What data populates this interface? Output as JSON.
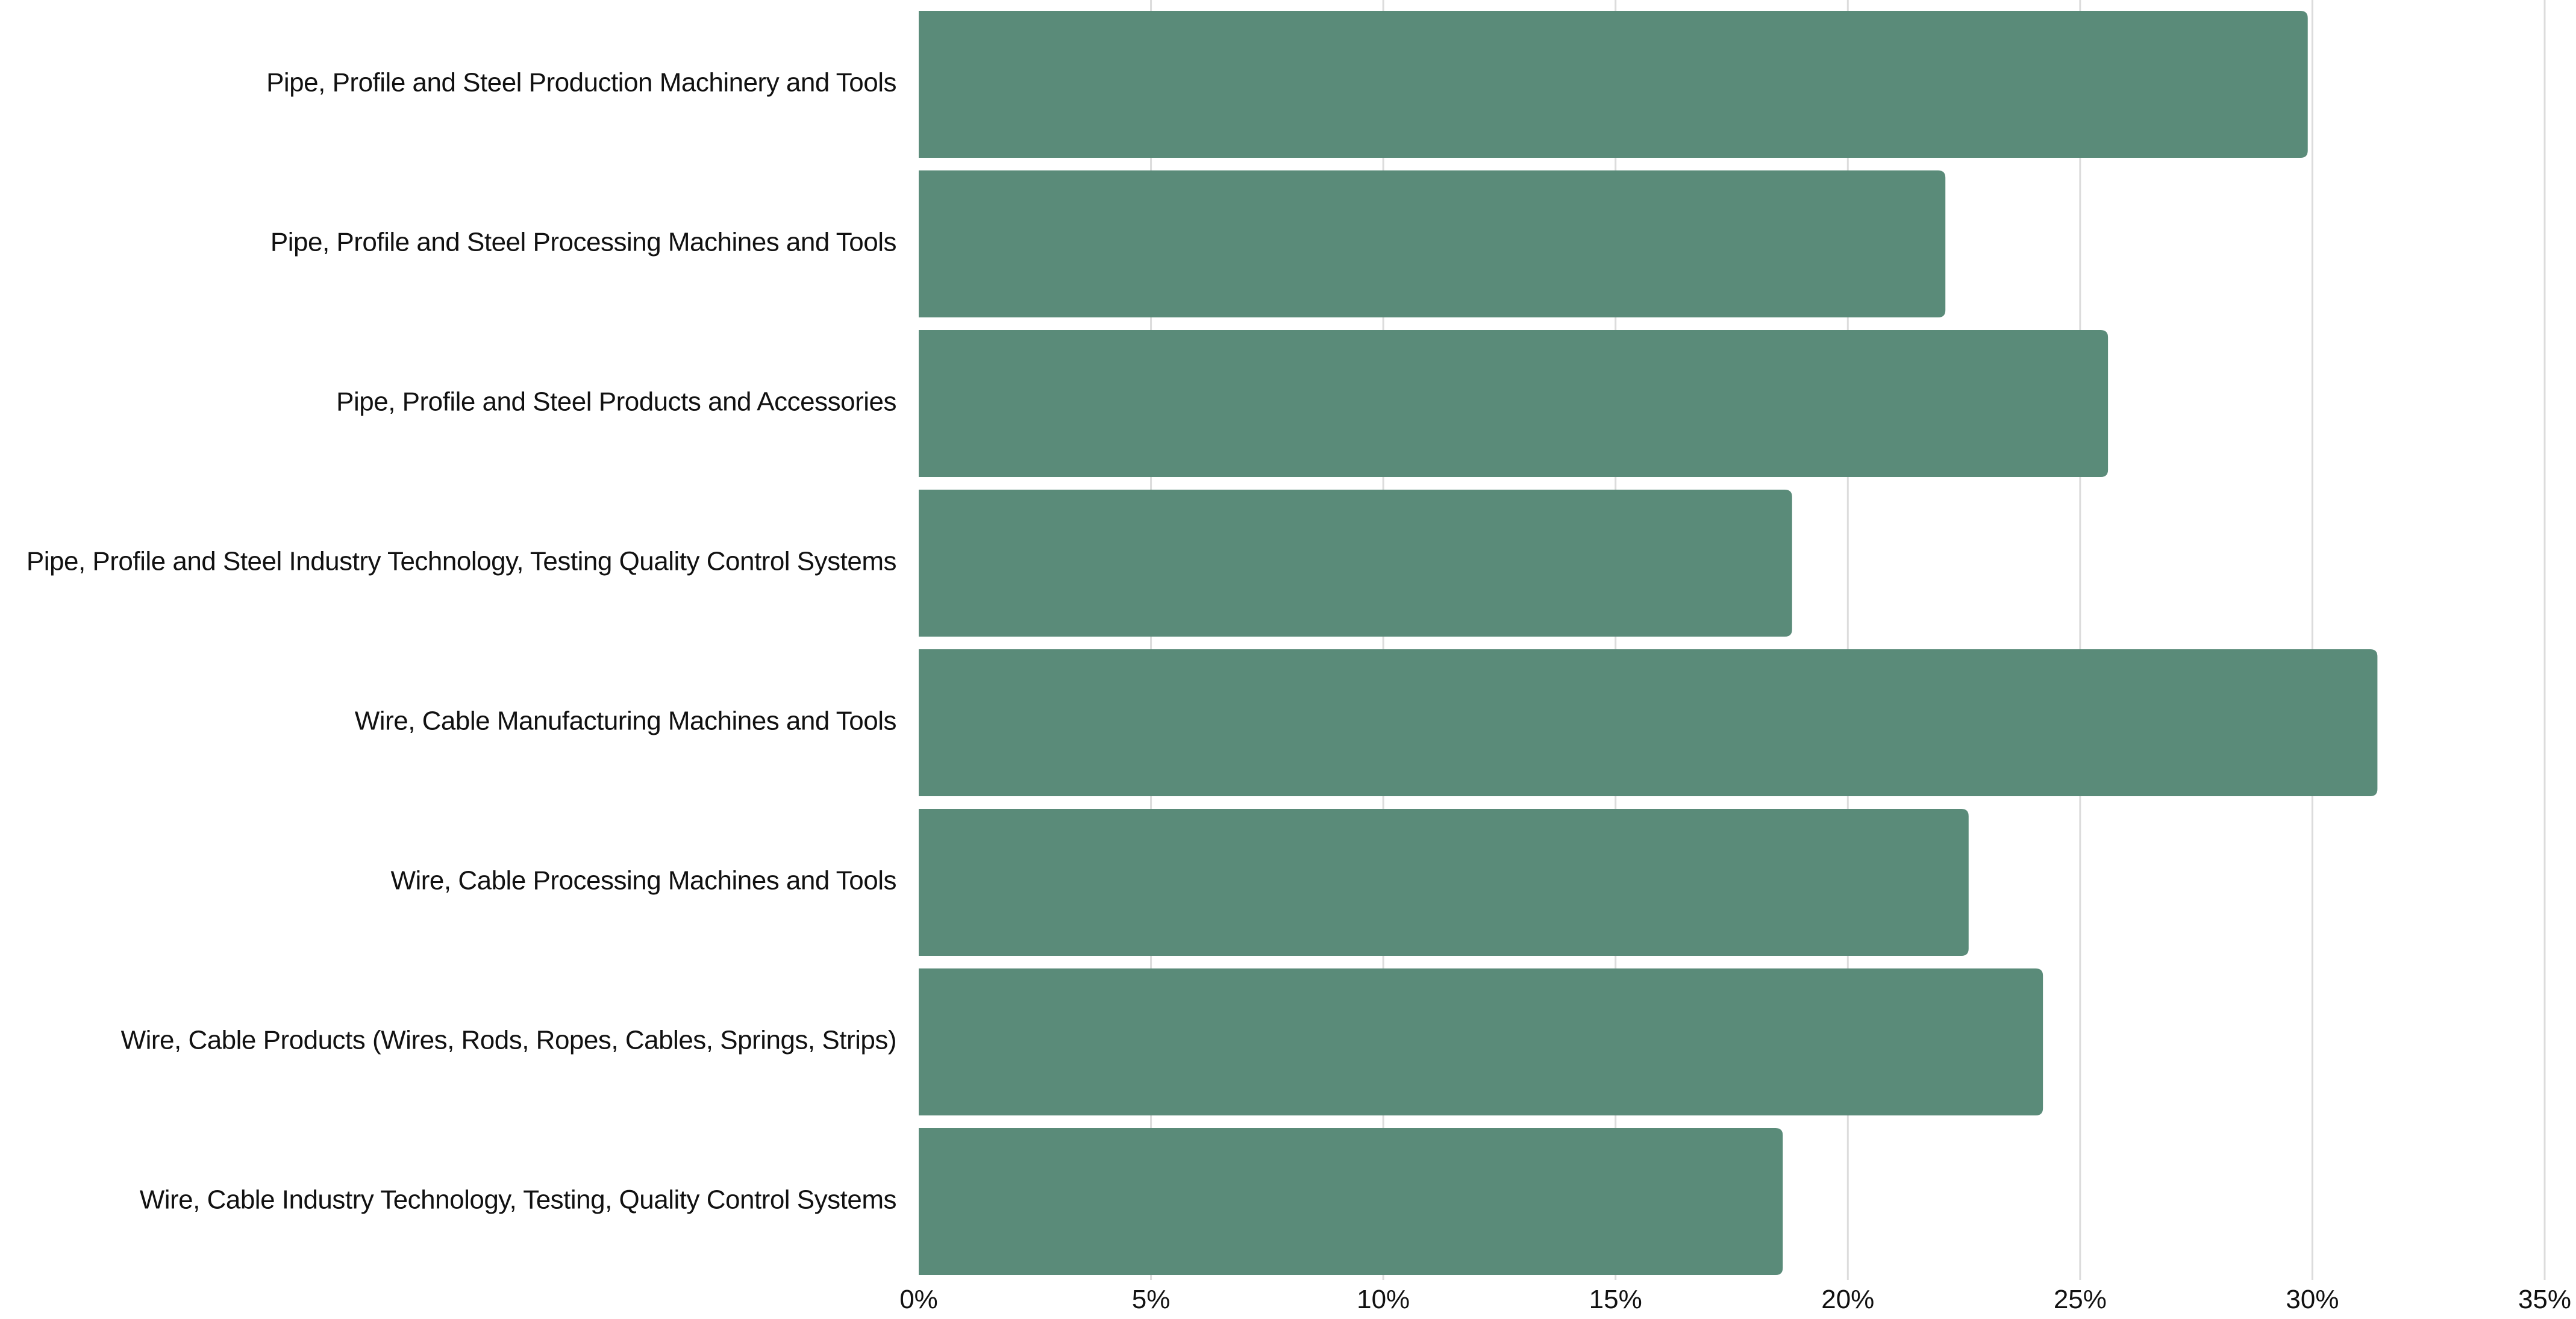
{
  "chart_data": {
    "type": "bar",
    "orientation": "horizontal",
    "categories": [
      "Pipe, Profile and Steel Production Machinery and Tools",
      "Pipe, Profile and Steel Processing Machines and Tools",
      "Pipe, Profile and Steel Products and Accessories",
      "Pipe, Profile and Steel Industry Technology, Testing Quality Control Systems",
      "Wire, Cable Manufacturing Machines and Tools",
      "Wire, Cable Processing Machines and Tools",
      "Wire, Cable Products (Wires, Rods, Ropes, Cables, Springs, Strips)",
      "Wire, Cable Industry Technology, Testing, Quality Control Systems"
    ],
    "values": [
      29.9,
      22.1,
      25.6,
      18.8,
      31.4,
      22.6,
      24.2,
      18.6
    ],
    "xlim": [
      0,
      35
    ],
    "xticks": [
      0,
      5,
      10,
      15,
      20,
      25,
      30,
      35
    ],
    "tick_format": "{v}%",
    "title": "",
    "xlabel": "",
    "ylabel": "",
    "grid": true,
    "bar_color": "#5a8b79",
    "grid_color": "#dcdcdc"
  }
}
